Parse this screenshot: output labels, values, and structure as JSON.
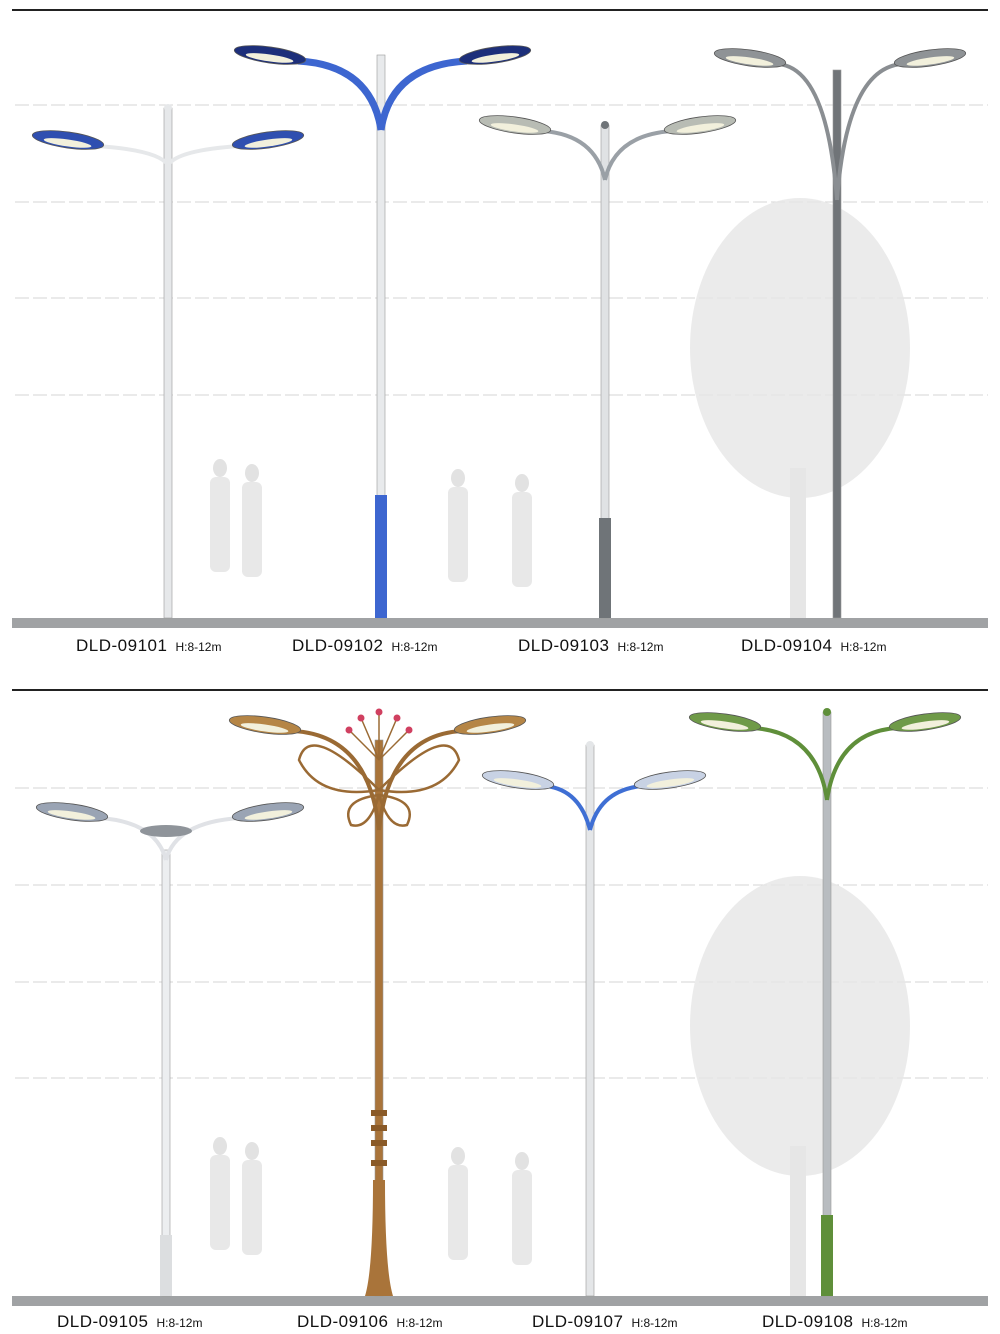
{
  "products": [
    {
      "code": "DLD-09101",
      "height": "H:8-12m",
      "pole_color": "#e6e8ea",
      "arm_color": "#e6e8ea",
      "head_color": "#2f4fb0",
      "sleeve_color": "#e6e8ea"
    },
    {
      "code": "DLD-09102",
      "height": "H:8-12m",
      "pole_color": "#e8eaec",
      "arm_color": "#3d66d0",
      "head_color": "#1d2f7a",
      "sleeve_color": "#3d66d0"
    },
    {
      "code": "DLD-09103",
      "height": "H:8-12m",
      "pole_color": "#e0e2e4",
      "arm_color": "#9aa0a6",
      "head_color": "#b8bcb4",
      "sleeve_color": "#6f7478"
    },
    {
      "code": "DLD-09104",
      "height": "H:8-12m",
      "pole_color": "#707478",
      "arm_color": "#8a8e92",
      "head_color": "#8f9396",
      "sleeve_color": "#707478"
    },
    {
      "code": "DLD-09105",
      "height": "H:8-12m",
      "pole_color": "#eceef0",
      "arm_color": "#e0e2e6",
      "head_color": "#9aa4b4",
      "sleeve_color": "#dcdee0"
    },
    {
      "code": "DLD-09106",
      "height": "H:8-12m",
      "pole_color": "#a9743a",
      "arm_color": "#9a6a34",
      "head_color": "#b58545",
      "sleeve_color": "#a9743a"
    },
    {
      "code": "DLD-09107",
      "height": "H:8-12m",
      "pole_color": "#e4e6e8",
      "arm_color": "#3f6fd4",
      "head_color": "#c8d2e4",
      "sleeve_color": "#e4e6e8"
    },
    {
      "code": "DLD-09108",
      "height": "H:8-12m",
      "pole_color": "#b8bcc0",
      "arm_color": "#5f8f3a",
      "head_color": "#6f9a48",
      "sleeve_color": "#5f8f3a"
    }
  ],
  "colors": {
    "ground": "#a0a2a4",
    "rule": "#222222",
    "gridline": "#d6d6d6",
    "silhouette": "#e6e6e6"
  }
}
